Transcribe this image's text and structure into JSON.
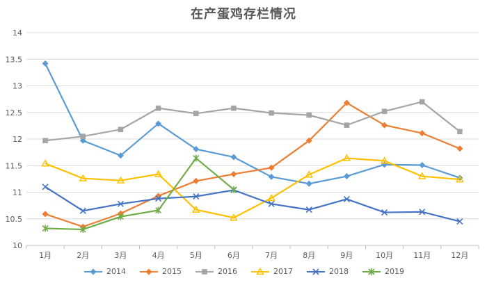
{
  "chart_data": {
    "type": "line",
    "title": "在产蛋鸡存栏情况",
    "categories": [
      "1月",
      "2月",
      "3月",
      "4月",
      "5月",
      "6月",
      "7月",
      "8月",
      "9月",
      "10月",
      "11月",
      "12月"
    ],
    "ylim": [
      10,
      14
    ],
    "yticks": [
      "10",
      "10.5",
      "11",
      "11.5",
      "12",
      "12.5",
      "13",
      "13.5",
      "14"
    ],
    "grid": "horizontal",
    "legend_position": "bottom",
    "series": [
      {
        "name": "2014",
        "color": "#5B9BD5",
        "marker": "diamond",
        "values": [
          13.42,
          11.97,
          11.69,
          12.29,
          11.81,
          11.66,
          11.29,
          11.16,
          11.3,
          11.52,
          11.51,
          11.27
        ]
      },
      {
        "name": "2015",
        "color": "#ED7D31",
        "marker": "diamond",
        "values": [
          10.59,
          10.35,
          10.6,
          10.93,
          11.21,
          11.34,
          11.46,
          11.97,
          12.68,
          12.26,
          12.11,
          11.82
        ]
      },
      {
        "name": "2016",
        "color": "#A5A5A5",
        "marker": "square",
        "values": [
          11.97,
          12.05,
          12.18,
          12.58,
          12.48,
          12.58,
          12.49,
          12.45,
          12.26,
          12.52,
          12.7,
          12.14
        ]
      },
      {
        "name": "2017",
        "color": "#FFC000",
        "marker": "triangle",
        "values": [
          11.54,
          11.26,
          11.22,
          11.34,
          10.67,
          10.52,
          10.89,
          11.33,
          11.64,
          11.59,
          11.3,
          11.24
        ]
      },
      {
        "name": "2018",
        "color": "#4472C4",
        "marker": "x",
        "values": [
          11.1,
          10.65,
          10.78,
          10.88,
          10.92,
          11.04,
          10.78,
          10.67,
          10.87,
          10.62,
          10.63,
          10.45
        ]
      },
      {
        "name": "2019",
        "color": "#70AD47",
        "marker": "star",
        "values": [
          10.32,
          10.3,
          10.54,
          10.66,
          11.64,
          11.05,
          null,
          null,
          null,
          null,
          null,
          null
        ]
      }
    ]
  }
}
